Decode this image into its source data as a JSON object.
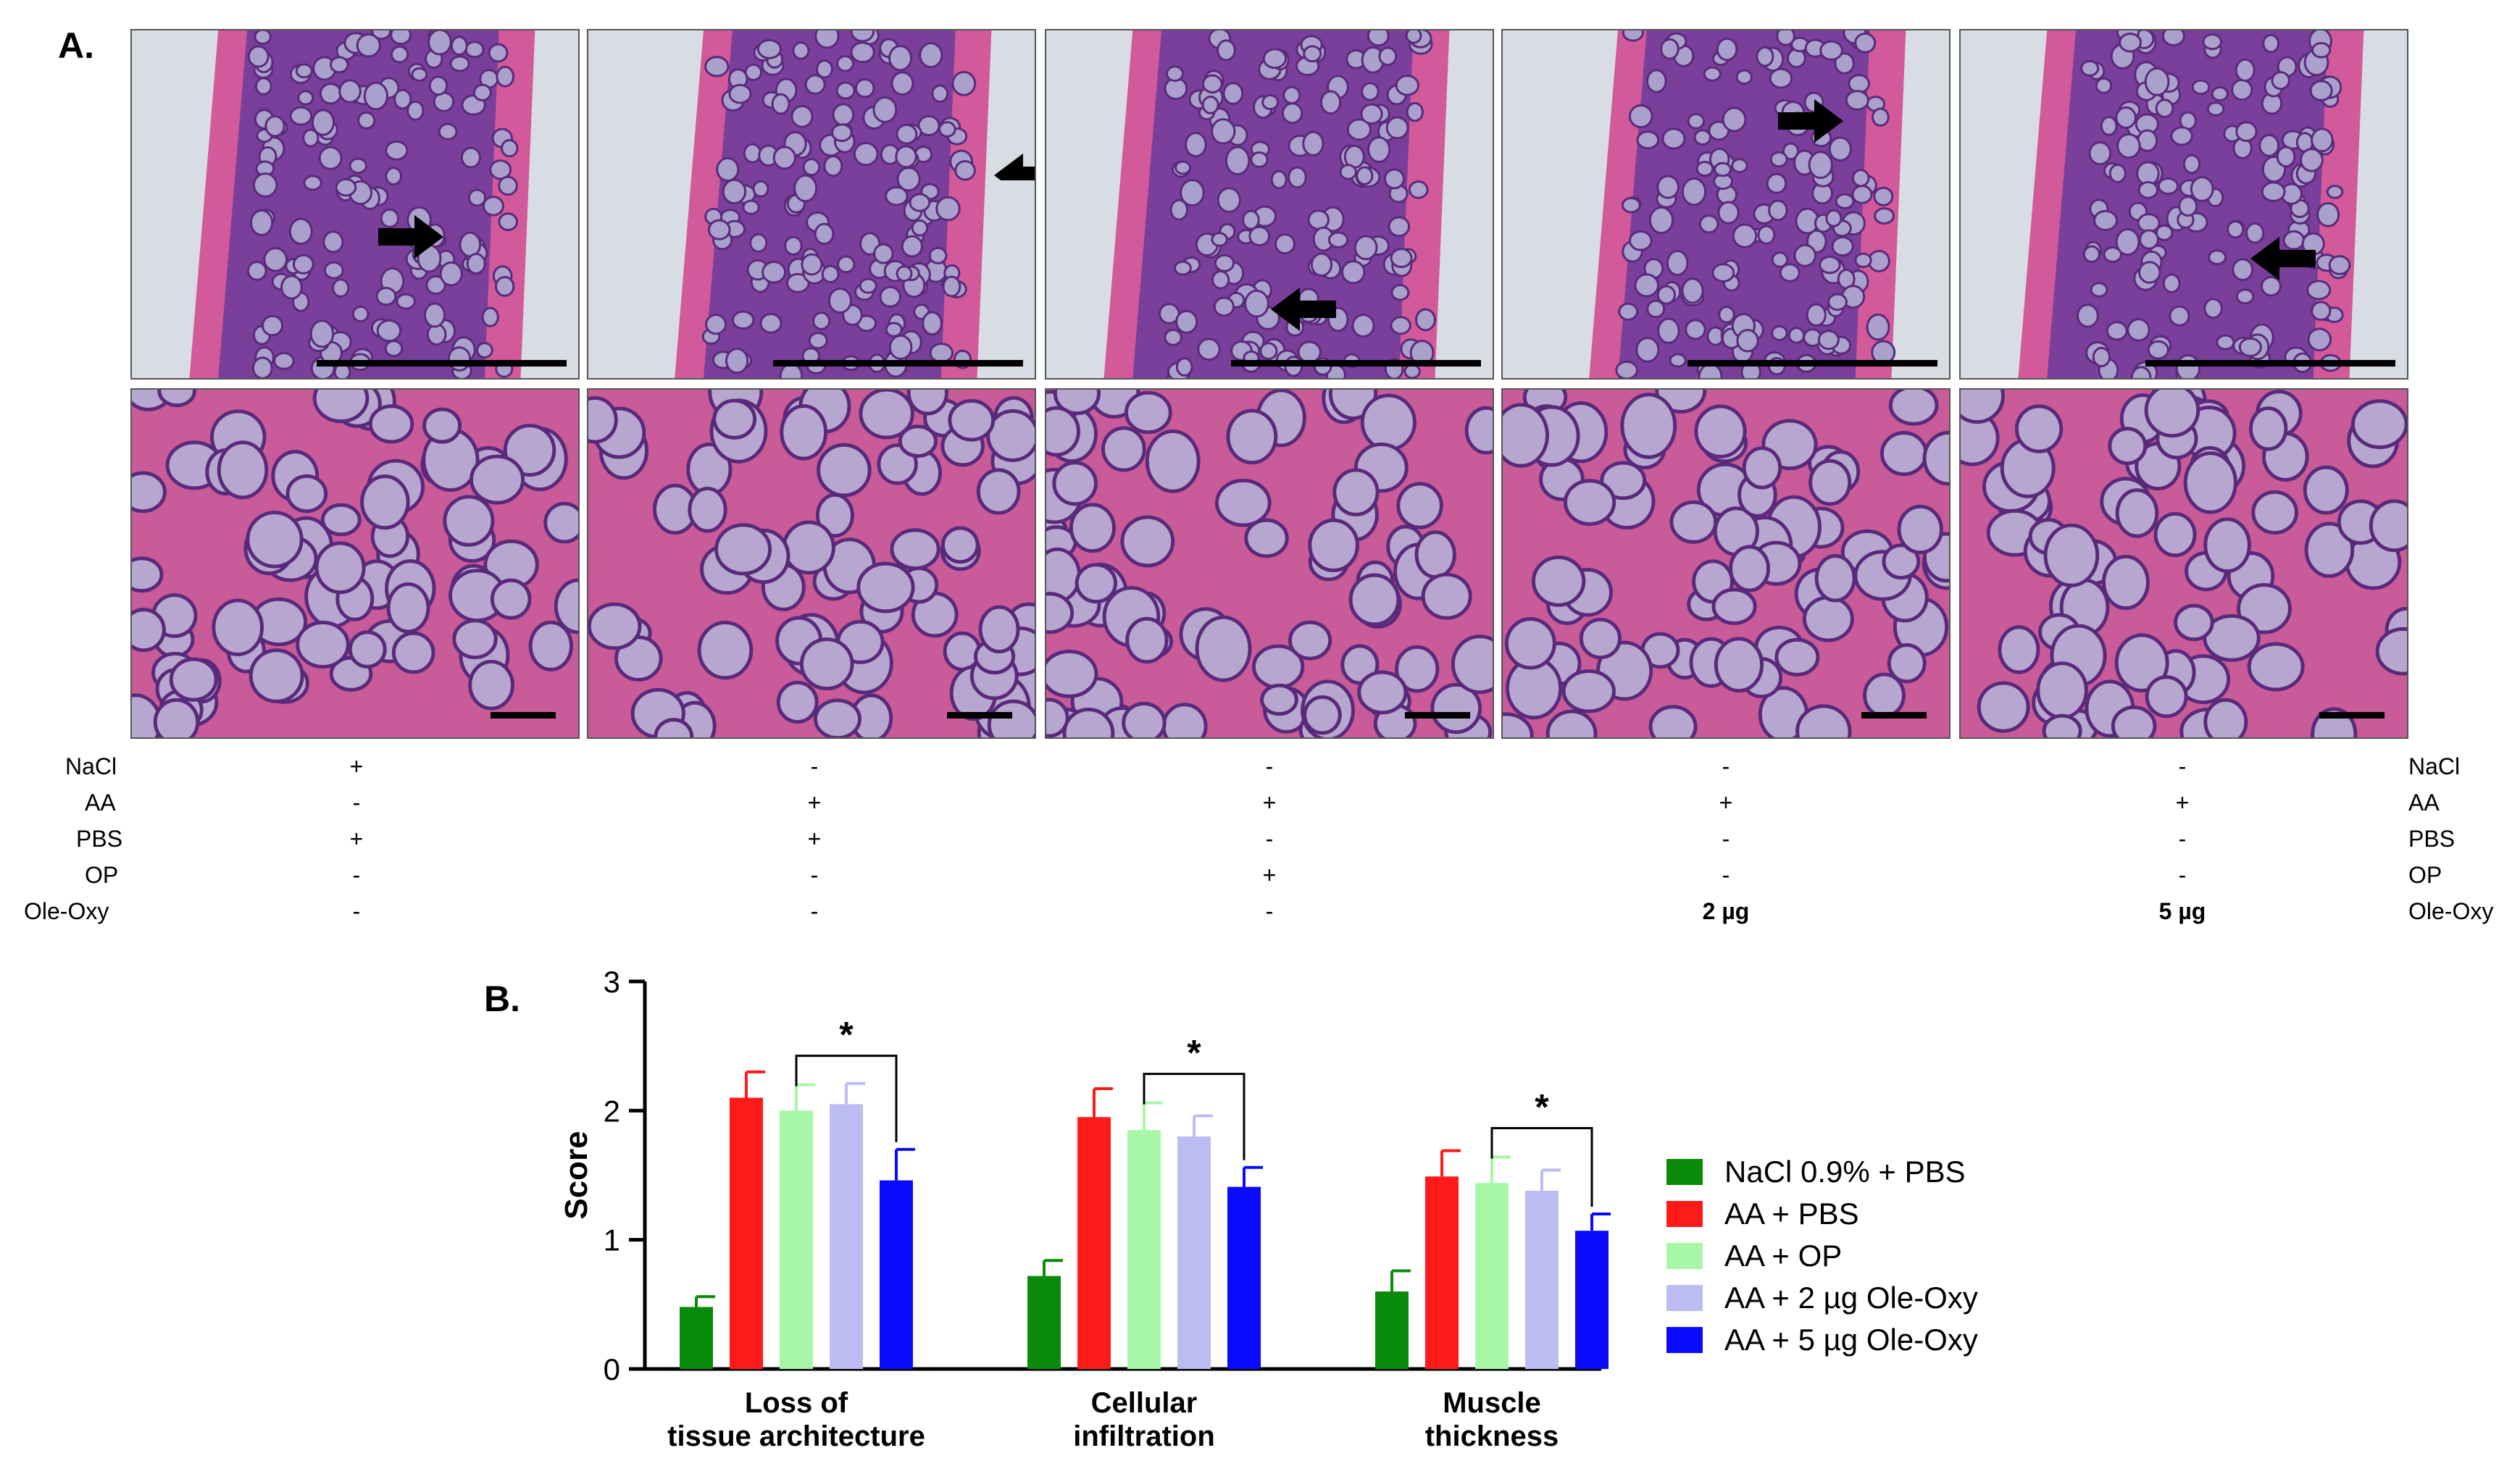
{
  "panels": {
    "a_label": "A.",
    "b_label": "B."
  },
  "histology": {
    "columns": 5,
    "tiles_top": [
      "tile-nacl-low",
      "tile-aa-pbs-low",
      "tile-aa-op-low",
      "tile-ole-2-low",
      "tile-ole-5-low"
    ],
    "tiles_bottom": [
      "tile-nacl-high",
      "tile-aa-pbs-high",
      "tile-aa-op-high",
      "tile-ole-2-high",
      "tile-ole-5-high"
    ],
    "arrow_dirs": [
      "right",
      "left",
      "left",
      "right",
      "left"
    ],
    "colors": {
      "stain_pink": "#d25a9a",
      "stain_purple": "#7a3f9a",
      "background": "#d7dde3"
    }
  },
  "treatments": {
    "row_labels": [
      "NaCl",
      "AA",
      "PBS",
      "OP",
      "Ole-Oxy"
    ],
    "values": [
      [
        "+",
        "-",
        "-",
        "-",
        "-"
      ],
      [
        "-",
        "+",
        "+",
        "+",
        "+"
      ],
      [
        "+",
        "+",
        "-",
        "-",
        "-"
      ],
      [
        "-",
        "-",
        "+",
        "-",
        "-"
      ],
      [
        "-",
        "-",
        "-",
        "2 µg",
        "5 µg"
      ]
    ]
  },
  "chart_data": {
    "type": "bar",
    "categories": [
      "Loss of\ntissue architecture",
      "Cellular\ninfiltration",
      "Muscle\nthickness"
    ],
    "category_lines": [
      [
        "Loss of",
        "tissue architecture"
      ],
      [
        "Cellular",
        "infiltration"
      ],
      [
        "Muscle",
        "thickness"
      ]
    ],
    "ylabel": "Score",
    "ylim": [
      0,
      3
    ],
    "yticks": [
      "0",
      "1",
      "2",
      "3"
    ],
    "series": [
      {
        "name": "NaCl 0.9% + PBS",
        "color": "#0a8a0a",
        "values": [
          0.48,
          0.72,
          0.6
        ],
        "errors": [
          0.08,
          0.12,
          0.16
        ]
      },
      {
        "name": "AA + PBS",
        "color": "#ff1a1a",
        "values": [
          2.1,
          1.95,
          1.49
        ],
        "errors": [
          0.2,
          0.22,
          0.2
        ]
      },
      {
        "name": "AA + OP",
        "color": "#a6f7a6",
        "values": [
          2.0,
          1.85,
          1.44
        ],
        "errors": [
          0.2,
          0.21,
          0.2
        ]
      },
      {
        "name": "AA + 2 µg Ole-Oxy",
        "color": "#bcbcf2",
        "values": [
          2.05,
          1.8,
          1.38
        ],
        "errors": [
          0.16,
          0.16,
          0.16
        ]
      },
      {
        "name": "AA + 5 µg Ole-Oxy",
        "color": "#0a0aff",
        "values": [
          1.46,
          1.41,
          1.07
        ],
        "errors": [
          0.24,
          0.15,
          0.13
        ]
      }
    ],
    "significance": [
      {
        "category": 0,
        "from_series": 2,
        "to_series": 4,
        "label": "*"
      },
      {
        "category": 1,
        "from_series": 2,
        "to_series": 4,
        "label": "*"
      },
      {
        "category": 2,
        "from_series": 2,
        "to_series": 4,
        "label": "*"
      }
    ],
    "legend_position": "right"
  }
}
